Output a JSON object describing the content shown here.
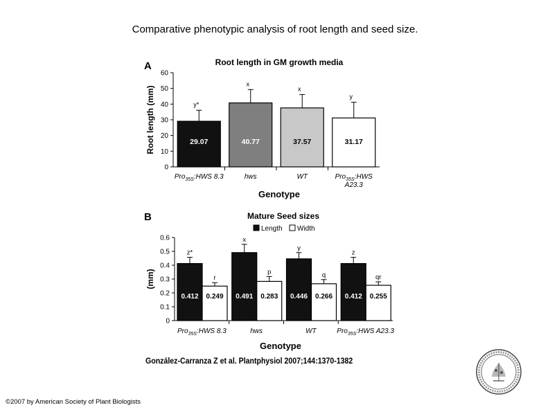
{
  "slide": {
    "title": "Comparative phenotypic analysis of root length and seed size.",
    "citation": "González-Carranza Z et al. Plantphysiol 2007;144:1370-1382",
    "copyright": "©2007 by American Society of Plant Biologists",
    "seal_logo": "American Society of Plant Biologists seal"
  },
  "chart_data": [
    {
      "panel": "A",
      "type": "bar",
      "title": "Root length in GM growth media",
      "xlabel": "Genotype",
      "ylabel": "Root length (mm)",
      "ylim": [
        0,
        60
      ],
      "yticks": [
        0,
        10,
        20,
        30,
        40,
        50,
        60
      ],
      "categories": [
        {
          "main": "Pro",
          "sub": "35S",
          "rest": ":HWS 8.3",
          "line2": ""
        },
        {
          "main": "hws",
          "sub": "",
          "rest": "",
          "line2": ""
        },
        {
          "main": "WT",
          "sub": "",
          "rest": "",
          "line2": ""
        },
        {
          "main": "Pro",
          "sub": "35S",
          "rest": ":HWS",
          "line2": "A23.3"
        }
      ],
      "values": [
        29.07,
        40.77,
        37.57,
        31.17
      ],
      "value_labels": [
        "29.07",
        "40.77",
        "37.57",
        "31.17"
      ],
      "errors": [
        7,
        8.5,
        8.5,
        10
      ],
      "significance": [
        "y*",
        "x",
        "x",
        "y"
      ],
      "colors": [
        "#111111",
        "#7f7f7f",
        "#c8c8c8",
        "#ffffff"
      ],
      "label_colors": [
        "#ffffff",
        "#ffffff",
        "#000000",
        "#000000"
      ],
      "grid": false
    },
    {
      "panel": "B",
      "type": "bar",
      "title": "Mature Seed sizes",
      "xlabel": "Genotype",
      "ylabel": "(mm)",
      "ylim": [
        0,
        0.6
      ],
      "yticks": [
        "0",
        "0.1",
        "0.2",
        "0.3",
        "0.4",
        "0.5",
        "0.6"
      ],
      "legend_position": "top",
      "categories": [
        {
          "main": "Pro",
          "sub": "35S",
          "rest": ":HWS 8.3"
        },
        {
          "main": "hws",
          "sub": "",
          "rest": ""
        },
        {
          "main": "WT",
          "sub": "",
          "rest": ""
        },
        {
          "main": "Pro",
          "sub": "35S",
          "rest": ":HWS A23.3"
        }
      ],
      "series": [
        {
          "name": "Length",
          "color": "#111111",
          "label_color": "#ffffff",
          "values": [
            0.412,
            0.491,
            0.446,
            0.412
          ],
          "value_labels": [
            "0.412",
            "0.491",
            "0.446",
            "0.412"
          ],
          "errors": [
            0.045,
            0.06,
            0.045,
            0.045
          ],
          "significance": [
            "z*",
            "x",
            "y",
            "z"
          ]
        },
        {
          "name": "Width",
          "color": "#ffffff",
          "label_color": "#000000",
          "values": [
            0.249,
            0.283,
            0.266,
            0.255
          ],
          "value_labels": [
            "0.249",
            "0.283",
            "0.266",
            "0.255"
          ],
          "errors": [
            0.025,
            0.035,
            0.03,
            0.025
          ],
          "significance": [
            "r",
            "p",
            "q",
            "qr"
          ]
        }
      ],
      "grid": false
    }
  ]
}
